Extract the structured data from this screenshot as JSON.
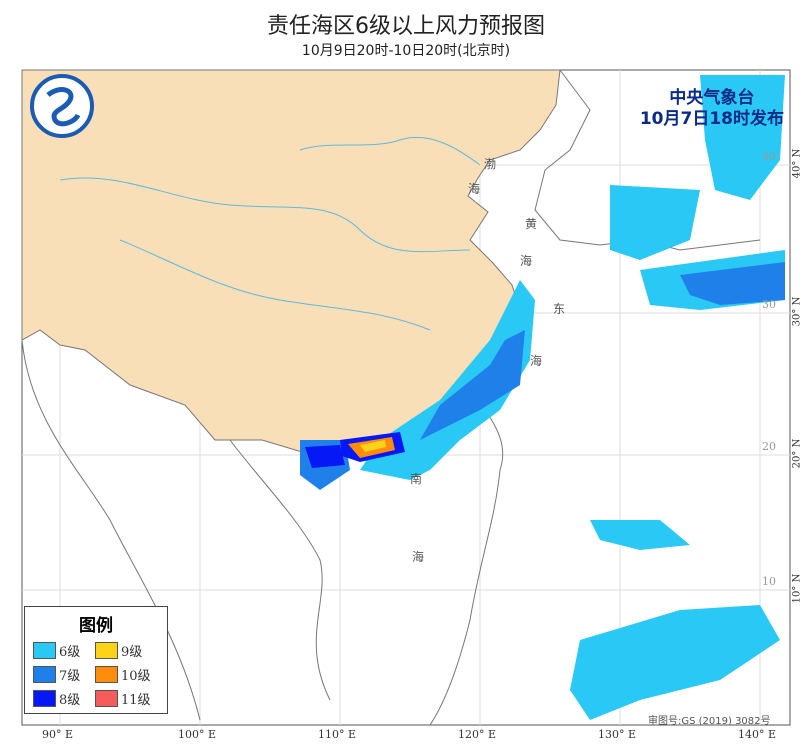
{
  "title": "责任海区6级以上风力预报图",
  "subtitle": "10月9日20时-10日20时(北京时)",
  "issuer": {
    "name": "中央气象台",
    "time": "10月7日18时发布",
    "logo": "cma-logo"
  },
  "legend": {
    "title": "图例",
    "items": [
      {
        "label": "6级",
        "color": "#29c8f5"
      },
      {
        "label": "7级",
        "color": "#1f80ea"
      },
      {
        "label": "8级",
        "color": "#0518f5"
      },
      {
        "label": "9级",
        "color": "#ffd21a"
      },
      {
        "label": "10级",
        "color": "#ff8c0a"
      },
      {
        "label": "11级",
        "color": "#f55c5c"
      }
    ]
  },
  "lon_labels": [
    "90° E",
    "100° E",
    "110° E",
    "120° E",
    "130° E",
    "140° E"
  ],
  "lat_labels": [
    "40° N",
    "30° N",
    "20° N",
    "10° N"
  ],
  "lat_inner": [
    "40",
    "30",
    "20",
    "10"
  ],
  "sea_labels": [
    "渤",
    "海",
    "黄",
    "海",
    "东",
    "海",
    "南",
    "海"
  ],
  "approval": "审图号:GS (2019) 3082号",
  "colors": {
    "land": "#f8dfb8",
    "river": "#5fb8e0"
  }
}
